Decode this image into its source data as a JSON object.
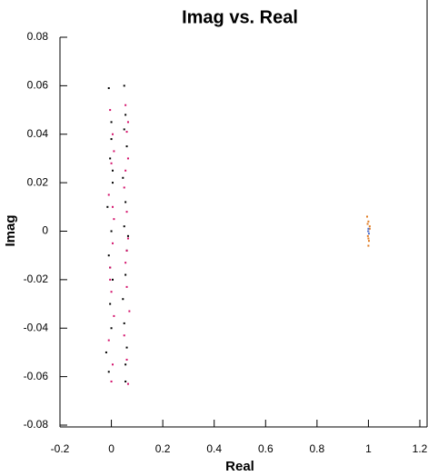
{
  "chart_data": {
    "type": "scatter",
    "title": "Imag vs. Real",
    "x_label": "Real",
    "y_label": "Imag",
    "xlim": [
      -0.2,
      1.2
    ],
    "xticks": [
      -0.2,
      0,
      0.2,
      0.4,
      0.6,
      0.8,
      1,
      1.2
    ],
    "ylim": [
      -0.08,
      0.08
    ],
    "yticks": [
      -0.08,
      -0.06,
      -0.04,
      -0.02,
      0,
      0.02,
      0.04,
      0.06,
      0.08
    ],
    "series": [
      {
        "color": "#000000",
        "x": [
          -0.01,
          0.0,
          -0.005,
          0.005,
          -0.015,
          0.0,
          -0.01,
          0.005,
          -0.005,
          0.0,
          -0.02,
          -0.01,
          0.0,
          -0.005,
          0.005,
          0.05,
          0.055,
          0.06,
          0.045,
          0.055,
          0.05,
          0.06,
          0.055,
          0.045,
          0.05,
          0.06,
          0.055,
          0.05,
          0.065,
          0.055
        ],
        "values": [
          0.059,
          0.045,
          0.03,
          0.02,
          0.01,
          0.0,
          -0.01,
          -0.02,
          -0.03,
          -0.04,
          -0.05,
          -0.058,
          0.038,
          -0.015,
          0.025,
          0.06,
          0.048,
          0.035,
          0.022,
          0.012,
          0.002,
          -0.008,
          -0.018,
          -0.028,
          -0.038,
          -0.048,
          -0.055,
          0.042,
          -0.002,
          -0.062
        ]
      },
      {
        "color": "#d4106a",
        "x": [
          -0.005,
          0.005,
          0.0,
          -0.01,
          0.01,
          0.005,
          -0.005,
          0.0,
          0.01,
          -0.01,
          0.005,
          0.0,
          0.01,
          -0.005,
          0.005,
          0.055,
          0.06,
          0.065,
          0.05,
          0.06,
          0.065,
          0.055,
          0.06,
          0.07,
          0.05,
          0.06,
          0.065,
          0.055,
          0.06,
          0.065
        ],
        "values": [
          0.05,
          0.04,
          0.028,
          0.015,
          0.005,
          -0.005,
          -0.015,
          -0.025,
          -0.035,
          -0.045,
          -0.055,
          -0.062,
          0.033,
          -0.02,
          0.01,
          0.052,
          0.041,
          0.03,
          0.018,
          0.008,
          -0.003,
          -0.013,
          -0.023,
          -0.033,
          -0.043,
          -0.053,
          -0.063,
          0.025,
          -0.008,
          0.045
        ]
      },
      {
        "color": "#e07a20",
        "x": [
          0.995,
          1.0,
          1.005,
          1.0,
          0.998,
          1.002,
          1.0,
          1.005,
          0.997,
          1.0
        ],
        "values": [
          0.006,
          0.004,
          0.002,
          0.0,
          -0.002,
          -0.004,
          -0.006,
          0.001,
          0.003,
          -0.003
        ]
      },
      {
        "color": "#4a6fd0",
        "x": [
          1.0,
          1.002,
          0.999
        ],
        "values": [
          0.001,
          -0.001,
          0.0
        ]
      }
    ]
  }
}
